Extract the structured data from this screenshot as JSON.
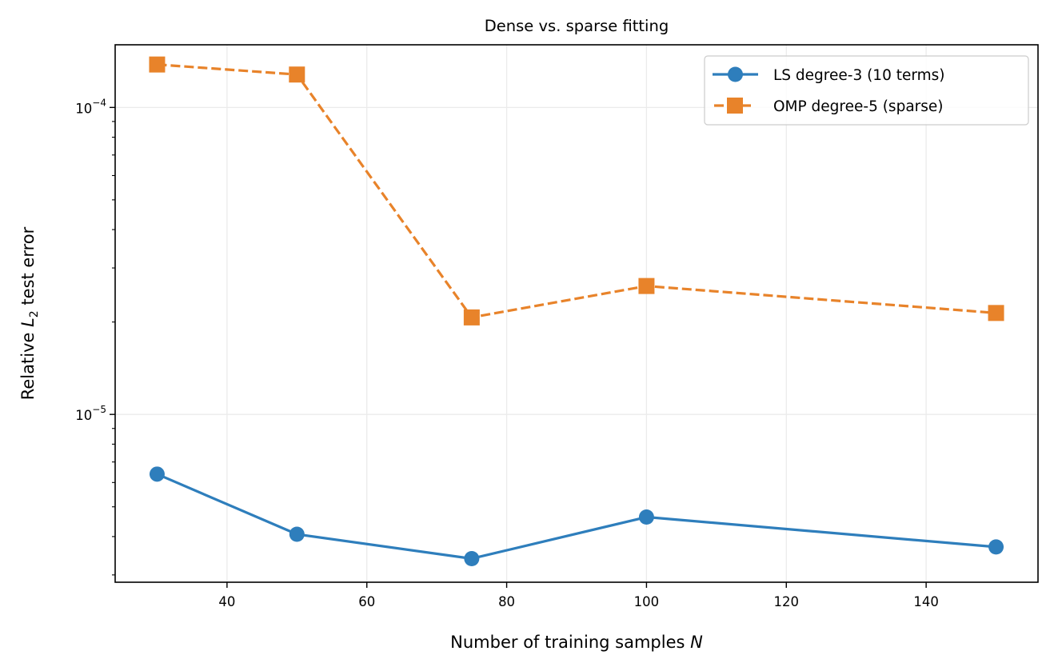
{
  "chart_data": {
    "type": "line",
    "title": "Dense vs. sparse fitting",
    "xlabel": "Number of training samples N",
    "xlabel_parts": {
      "text": "Number of training samples ",
      "var": "N"
    },
    "ylabel": "Relative L2 test error",
    "ylabel_parts": {
      "prefix": "Relative ",
      "var": "L",
      "sub": "2",
      "suffix": " test error"
    },
    "yscale": "log",
    "xlim": [
      24,
      156
    ],
    "ylim": [
      2.84e-06,
      0.00016
    ],
    "grid": true,
    "legend_position": "top-right",
    "x_ticks": [
      40,
      60,
      80,
      100,
      120,
      140
    ],
    "x_tick_labels": [
      "40",
      "60",
      "80",
      "100",
      "120",
      "140"
    ],
    "y_major_ticks": [
      1e-05,
      0.0001
    ],
    "y_major_tick_labels": [
      {
        "base": "10",
        "exp": "−5"
      },
      {
        "base": "10",
        "exp": "−4"
      }
    ],
    "x": [
      30,
      50,
      75,
      100,
      150
    ],
    "series": [
      {
        "name": "LS degree-3 (10 terms)",
        "color": "#2e7ebc",
        "marker": "circle",
        "linestyle": "solid",
        "values": [
          6.39e-06,
          4.07e-06,
          3.39e-06,
          4.63e-06,
          3.7e-06
        ]
      },
      {
        "name": "OMP degree-5 (sparse)",
        "color": "#e8832a",
        "marker": "square",
        "linestyle": "dashed",
        "values": [
          0.000138,
          0.000128,
          2.07e-05,
          2.62e-05,
          2.14e-05
        ]
      }
    ]
  }
}
